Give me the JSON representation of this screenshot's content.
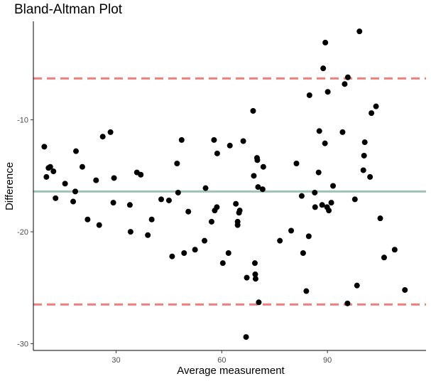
{
  "chart_data": {
    "type": "scatter",
    "title": "Bland-Altman Plot",
    "xlabel": "Average measurement",
    "ylabel": "Difference",
    "xlim": [
      6.5,
      118.0
    ],
    "ylim": [
      -30.6,
      -1.2
    ],
    "xticks": [
      30,
      60,
      90
    ],
    "yticks": [
      -10,
      -20,
      -30
    ],
    "grid": false,
    "legend": "none",
    "colors": {
      "points": "#000000",
      "mean_line": "#9dc3b7",
      "limits": "#f08080"
    },
    "reference_lines": [
      {
        "name": "upper limit",
        "y": -6.3,
        "style": "dashed",
        "color": "#f08080"
      },
      {
        "name": "mean difference",
        "y": -16.4,
        "style": "solid",
        "color": "#9dc3b7"
      },
      {
        "name": "lower limit",
        "y": -26.5,
        "style": "dashed",
        "color": "#f08080"
      }
    ],
    "points": [
      [
        9.6,
        -12.4
      ],
      [
        10.2,
        -15.1
      ],
      [
        10.8,
        -14.3
      ],
      [
        11.3,
        -14.2
      ],
      [
        12.2,
        -14.6
      ],
      [
        12.8,
        -17.0
      ],
      [
        15.5,
        -15.7
      ],
      [
        17.8,
        -17.3
      ],
      [
        18.4,
        -16.4
      ],
      [
        18.6,
        -12.8
      ],
      [
        20.4,
        -14.2
      ],
      [
        21.9,
        -18.9
      ],
      [
        24.3,
        -15.4
      ],
      [
        25.2,
        -19.4
      ],
      [
        26.2,
        -11.5
      ],
      [
        28.4,
        -11.1
      ],
      [
        29.2,
        -17.4
      ],
      [
        29.4,
        -15.2
      ],
      [
        33.9,
        -17.6
      ],
      [
        34.1,
        -20.0
      ],
      [
        35.9,
        -14.7
      ],
      [
        37.0,
        -14.9
      ],
      [
        39.0,
        -20.3
      ],
      [
        40.1,
        -18.9
      ],
      [
        42.8,
        -17.1
      ],
      [
        45.0,
        -17.2
      ],
      [
        45.9,
        -22.2
      ],
      [
        47.3,
        -13.9
      ],
      [
        47.6,
        -16.5
      ],
      [
        48.6,
        -11.8
      ],
      [
        49.3,
        -21.9
      ],
      [
        50.5,
        -18.2
      ],
      [
        52.4,
        -21.6
      ],
      [
        55.1,
        -20.8
      ],
      [
        55.4,
        -16.1
      ],
      [
        57.1,
        -19.1
      ],
      [
        57.8,
        -11.8
      ],
      [
        58.0,
        -18.1
      ],
      [
        58.6,
        -17.8
      ],
      [
        58.7,
        -13.0
      ],
      [
        60.3,
        -22.8
      ],
      [
        61.9,
        -21.9
      ],
      [
        62.3,
        -12.3
      ],
      [
        64.0,
        -17.5
      ],
      [
        64.5,
        -19.1
      ],
      [
        64.5,
        -19.4
      ],
      [
        64.9,
        -18.3
      ],
      [
        65.1,
        -18.1
      ],
      [
        66.1,
        -11.9
      ],
      [
        67.1,
        -24.1
      ],
      [
        66.9,
        -29.4
      ],
      [
        68.9,
        -9.2
      ],
      [
        69.1,
        -15.0
      ],
      [
        69.4,
        -22.8
      ],
      [
        69.5,
        -23.8
      ],
      [
        69.6,
        -24.2
      ],
      [
        70.0,
        -13.4
      ],
      [
        70.1,
        -13.6
      ],
      [
        70.3,
        -16.0
      ],
      [
        70.5,
        -26.3
      ],
      [
        71.6,
        -16.2
      ],
      [
        71.8,
        -14.2
      ],
      [
        76.5,
        -20.8
      ],
      [
        79.7,
        -19.9
      ],
      [
        81.2,
        -13.9
      ],
      [
        82.7,
        -16.8
      ],
      [
        83.1,
        -21.9
      ],
      [
        84.0,
        -25.3
      ],
      [
        84.7,
        -20.4
      ],
      [
        84.9,
        -7.8
      ],
      [
        86.5,
        -17.8
      ],
      [
        86.4,
        -16.5
      ],
      [
        87.5,
        -14.7
      ],
      [
        87.7,
        -11.0
      ],
      [
        88.5,
        -17.6
      ],
      [
        88.8,
        -5.4
      ],
      [
        89.3,
        -12.1
      ],
      [
        89.4,
        -3.1
      ],
      [
        89.9,
        -17.8
      ],
      [
        90.1,
        -7.5
      ],
      [
        90.4,
        -18.1
      ],
      [
        91.1,
        -17.4
      ],
      [
        91.6,
        -15.9
      ],
      [
        94.3,
        -11.1
      ],
      [
        94.9,
        -6.8
      ],
      [
        95.7,
        -26.4
      ],
      [
        95.8,
        -6.2
      ],
      [
        97.8,
        -17.1
      ],
      [
        98.4,
        -24.8
      ],
      [
        99.1,
        -2.1
      ],
      [
        100.2,
        -14.5
      ],
      [
        100.4,
        -13.2
      ],
      [
        100.6,
        -12.0
      ],
      [
        102.1,
        -15.1
      ],
      [
        102.5,
        -9.4
      ],
      [
        103.8,
        -8.8
      ],
      [
        105.0,
        -18.8
      ],
      [
        106.1,
        -22.3
      ],
      [
        109.1,
        -21.6
      ],
      [
        112.0,
        -25.2
      ]
    ]
  }
}
